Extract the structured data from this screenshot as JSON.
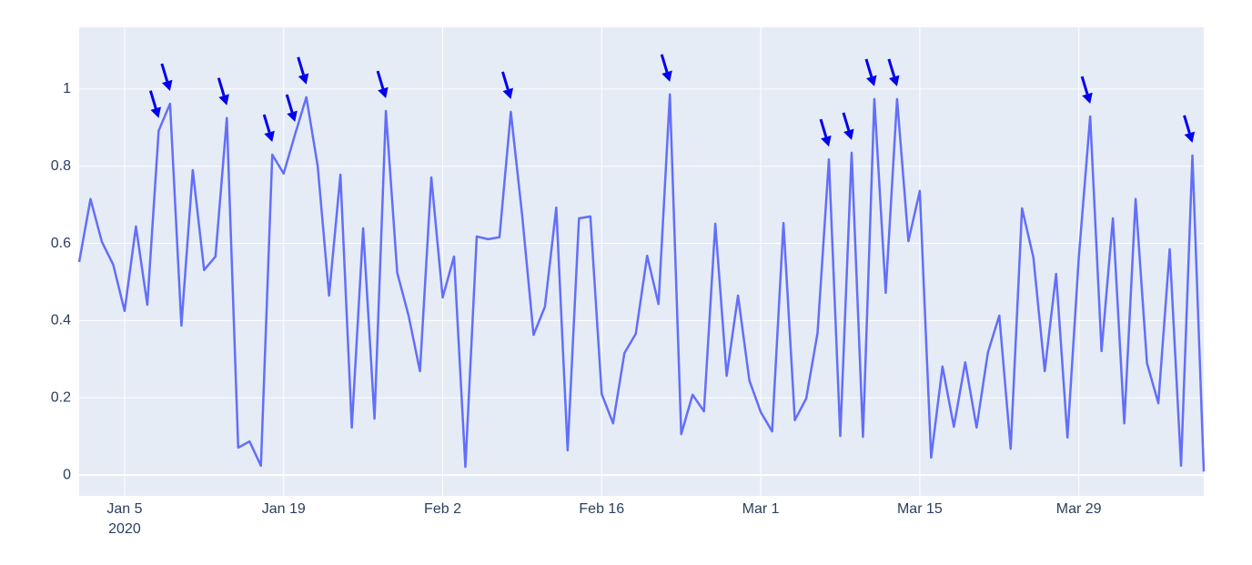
{
  "chart_data": {
    "type": "line",
    "x": [
      "2020-01-01",
      "2020-01-02",
      "2020-01-03",
      "2020-01-04",
      "2020-01-05",
      "2020-01-06",
      "2020-01-07",
      "2020-01-08",
      "2020-01-09",
      "2020-01-10",
      "2020-01-11",
      "2020-01-12",
      "2020-01-13",
      "2020-01-14",
      "2020-01-15",
      "2020-01-16",
      "2020-01-17",
      "2020-01-18",
      "2020-01-19",
      "2020-01-20",
      "2020-01-21",
      "2020-01-22",
      "2020-01-23",
      "2020-01-24",
      "2020-01-25",
      "2020-01-26",
      "2020-01-27",
      "2020-01-28",
      "2020-01-29",
      "2020-01-30",
      "2020-01-31",
      "2020-02-01",
      "2020-02-02",
      "2020-02-03",
      "2020-02-04",
      "2020-02-05",
      "2020-02-06",
      "2020-02-07",
      "2020-02-08",
      "2020-02-09",
      "2020-02-10",
      "2020-02-11",
      "2020-02-12",
      "2020-02-13",
      "2020-02-14",
      "2020-02-15",
      "2020-02-16",
      "2020-02-17",
      "2020-02-18",
      "2020-02-19",
      "2020-02-20",
      "2020-02-21",
      "2020-02-22",
      "2020-02-23",
      "2020-02-24",
      "2020-02-25",
      "2020-02-26",
      "2020-02-27",
      "2020-02-28",
      "2020-02-29",
      "2020-03-01",
      "2020-03-02",
      "2020-03-03",
      "2020-03-04",
      "2020-03-05",
      "2020-03-06",
      "2020-03-07",
      "2020-03-08",
      "2020-03-09",
      "2020-03-10",
      "2020-03-11",
      "2020-03-12",
      "2020-03-13",
      "2020-03-14",
      "2020-03-15",
      "2020-03-16",
      "2020-03-17",
      "2020-03-18",
      "2020-03-19",
      "2020-03-20",
      "2020-03-21",
      "2020-03-22",
      "2020-03-23",
      "2020-03-24",
      "2020-03-25",
      "2020-03-26",
      "2020-03-27",
      "2020-03-28",
      "2020-03-29",
      "2020-03-30",
      "2020-03-31",
      "2020-04-01",
      "2020-04-02",
      "2020-04-03",
      "2020-04-04",
      "2020-04-05",
      "2020-04-06",
      "2020-04-07",
      "2020-04-08",
      "2020-04-09"
    ],
    "series": [
      {
        "color": "#636efa",
        "values": [
          0.552,
          0.715,
          0.604,
          0.545,
          0.425,
          0.644,
          0.441,
          0.892,
          0.962,
          0.387,
          0.79,
          0.531,
          0.566,
          0.925,
          0.071,
          0.087,
          0.024,
          0.83,
          0.781,
          0.882,
          0.979,
          0.8,
          0.465,
          0.778,
          0.123,
          0.639,
          0.146,
          0.943,
          0.524,
          0.413,
          0.269,
          0.771,
          0.46,
          0.566,
          0.021,
          0.618,
          0.611,
          0.616,
          0.941,
          0.672,
          0.363,
          0.436,
          0.693,
          0.064,
          0.665,
          0.67,
          0.21,
          0.134,
          0.316,
          0.366,
          0.568,
          0.443,
          0.986,
          0.106,
          0.208,
          0.165,
          0.651,
          0.257,
          0.465,
          0.245,
          0.163,
          0.113,
          0.653,
          0.142,
          0.198,
          0.368,
          0.818,
          0.101,
          0.835,
          0.099,
          0.974,
          0.472,
          0.974,
          0.606,
          0.736,
          0.045,
          0.281,
          0.125,
          0.292,
          0.123,
          0.318,
          0.413,
          0.068,
          0.691,
          0.564,
          0.269,
          0.521,
          0.097,
          0.564,
          0.929,
          0.321,
          0.665,
          0.134,
          0.715,
          0.29,
          0.186,
          0.585,
          0.024,
          0.828,
          0.009
        ]
      }
    ],
    "annotations": [
      {
        "x": "2020-01-08",
        "y": 0.892
      },
      {
        "x": "2020-01-09",
        "y": 0.962
      },
      {
        "x": "2020-01-14",
        "y": 0.925
      },
      {
        "x": "2020-01-18",
        "y": 0.83
      },
      {
        "x": "2020-01-20",
        "y": 0.882
      },
      {
        "x": "2020-01-21",
        "y": 0.979
      },
      {
        "x": "2020-01-28",
        "y": 0.943
      },
      {
        "x": "2020-02-08",
        "y": 0.941
      },
      {
        "x": "2020-02-22",
        "y": 0.986
      },
      {
        "x": "2020-03-07",
        "y": 0.818
      },
      {
        "x": "2020-03-09",
        "y": 0.835
      },
      {
        "x": "2020-03-11",
        "y": 0.974
      },
      {
        "x": "2020-03-13",
        "y": 0.974
      },
      {
        "x": "2020-03-30",
        "y": 0.929
      },
      {
        "x": "2020-04-08",
        "y": 0.828
      }
    ],
    "annotation_color": "#0000ee",
    "xlim": [
      "2020-01-01",
      "2020-04-09"
    ],
    "xticks": [
      {
        "value": "2020-01-05",
        "label": "Jan 5"
      },
      {
        "value": "2020-01-19",
        "label": "Jan 19"
      },
      {
        "value": "2020-02-02",
        "label": "Feb 2"
      },
      {
        "value": "2020-02-16",
        "label": "Feb 16"
      },
      {
        "value": "2020-03-01",
        "label": "Mar 1"
      },
      {
        "value": "2020-03-15",
        "label": "Mar 15"
      },
      {
        "value": "2020-03-29",
        "label": "Mar 29"
      }
    ],
    "x_year_label": "2020",
    "ylim": [
      -0.054,
      1.16
    ],
    "yticks": [
      0,
      0.2,
      0.4,
      0.6,
      0.8,
      1
    ],
    "grid": true
  }
}
